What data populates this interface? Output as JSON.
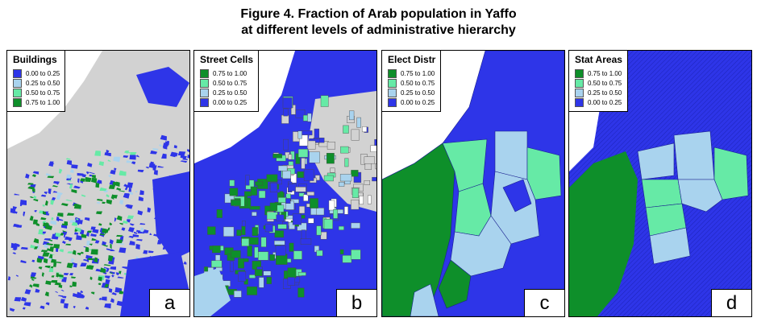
{
  "figure": {
    "title_line1": "Figure 4. Fraction of Arab population in Yaffo",
    "title_line2": "at different levels of administrative hierarchy"
  },
  "colors": {
    "c0_00_025": "#2e35e8",
    "c0_25_050": "#a9d3ee",
    "c0_50_075": "#66eaa6",
    "c0_75_100": "#0e8f2a",
    "no_data": "#d2d2d2",
    "background": "#ffffff"
  },
  "panels": [
    {
      "letter": "a",
      "legend_title": "Buildings",
      "legend": [
        {
          "label": "0.00 to 0.25",
          "color": "#2e35e8"
        },
        {
          "label": "0.25 to 0.50",
          "color": "#a9d3ee"
        },
        {
          "label": "0.50 to 0.75",
          "color": "#66eaa6"
        },
        {
          "label": "0.75 to 1.00",
          "color": "#0e8f2a"
        }
      ]
    },
    {
      "letter": "b",
      "legend_title": "Street Cells",
      "legend": [
        {
          "label": "0.75 to 1.00",
          "color": "#0e8f2a"
        },
        {
          "label": "0.50 to 0.75",
          "color": "#66eaa6"
        },
        {
          "label": "0.25 to 0.50",
          "color": "#a9d3ee"
        },
        {
          "label": "0.00 to 0.25",
          "color": "#2e35e8"
        }
      ]
    },
    {
      "letter": "c",
      "legend_title": "Elect Distr",
      "legend": [
        {
          "label": "0.75 to 1.00",
          "color": "#0e8f2a"
        },
        {
          "label": "0.50 to 0.75",
          "color": "#66eaa6"
        },
        {
          "label": "0.25 to 0.50",
          "color": "#a9d3ee"
        },
        {
          "label": "0.00 to 0.25",
          "color": "#2e35e8"
        }
      ]
    },
    {
      "letter": "d",
      "legend_title": "Stat Areas",
      "legend": [
        {
          "label": "0.75 to 1.00",
          "color": "#0e8f2a"
        },
        {
          "label": "0.50 to 0.75",
          "color": "#66eaa6"
        },
        {
          "label": "0.25 to 0.50",
          "color": "#a9d3ee"
        },
        {
          "label": "0.00 to 0.25",
          "color": "#2e35e8"
        }
      ]
    }
  ]
}
